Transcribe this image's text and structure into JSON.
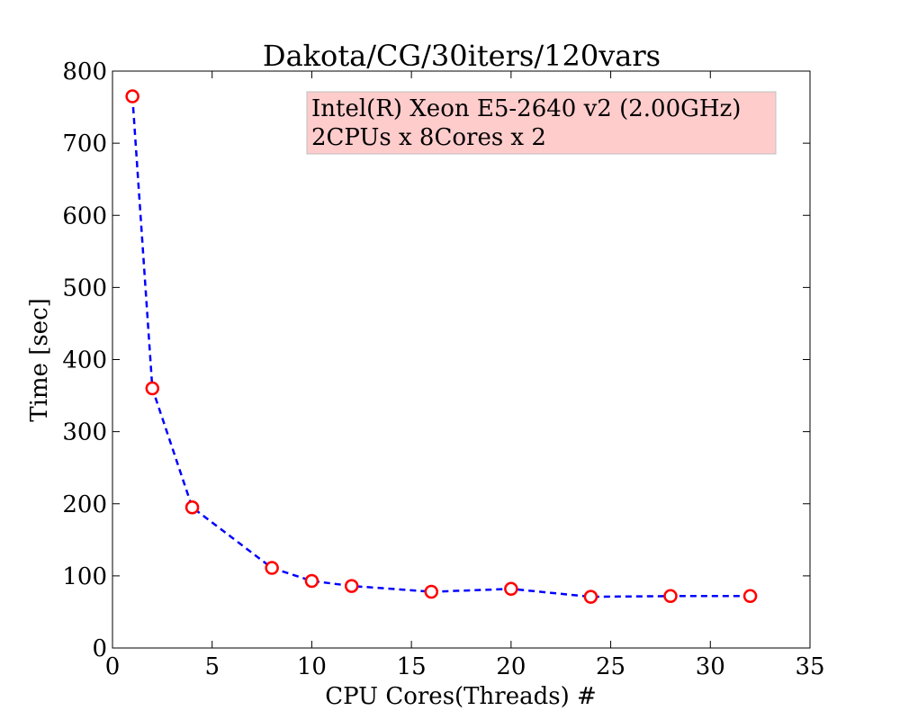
{
  "chart_data": {
    "type": "line",
    "title": "Dakota/CG/30iters/120vars",
    "xlabel": "CPU Cores(Threads) #",
    "ylabel": "Time [sec]",
    "xlim": [
      0,
      35
    ],
    "ylim": [
      0,
      800
    ],
    "xticks": [
      0,
      5,
      10,
      15,
      20,
      25,
      30,
      35
    ],
    "yticks": [
      0,
      100,
      200,
      300,
      400,
      500,
      600,
      700,
      800
    ],
    "grid": false,
    "annotation": {
      "lines": [
        "Intel(R) Xeon E5-2640 v2 (2.00GHz)",
        "2CPUs x 8Cores x 2"
      ],
      "background": "#ffcccc",
      "placement": "top-right"
    },
    "series": [
      {
        "x": [
          1,
          2,
          4,
          8,
          10,
          12,
          16,
          20,
          24,
          28,
          32
        ],
        "y": [
          765,
          360,
          195,
          111,
          93,
          86,
          78,
          82,
          71,
          72,
          72
        ],
        "line_color": "#0000ff",
        "line_style": "dashed",
        "marker": "circle",
        "marker_edge_color": "#ff0000",
        "marker_face_color": "#ffffff"
      }
    ]
  }
}
